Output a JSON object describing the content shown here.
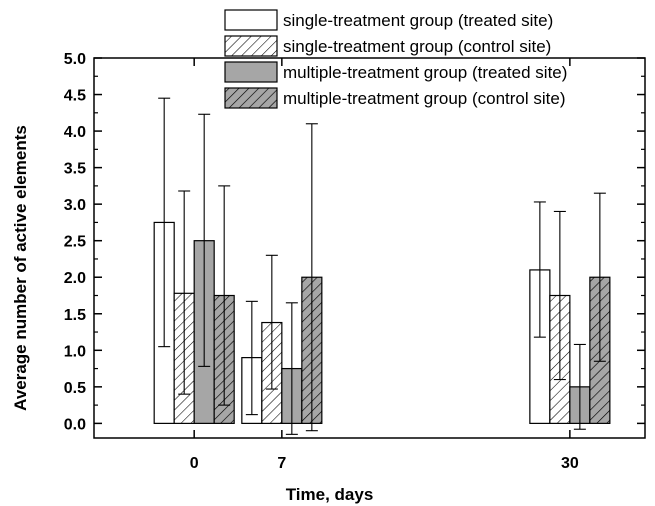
{
  "chart_data": {
    "type": "bar",
    "title": "",
    "xlabel": "Time, days",
    "ylabel": "Average number of active elements",
    "categories": [
      "0",
      "7",
      "30"
    ],
    "x_positions": [
      0,
      7,
      30
    ],
    "xlim": [
      -8,
      36
    ],
    "ylim": [
      -0.2,
      5.0
    ],
    "y_ticks": [
      "0.0",
      "0.5",
      "1.0",
      "1.5",
      "2.0",
      "2.5",
      "3.0",
      "3.5",
      "4.0",
      "4.5",
      "5.0"
    ],
    "grid": false,
    "legend_position": "top-right",
    "series": [
      {
        "name": "single-treatment group (treated site)",
        "pattern": "open",
        "fill": "#ffffff",
        "values": [
          2.75,
          0.9,
          2.1
        ],
        "err_low": [
          1.05,
          0.12,
          1.18
        ],
        "err_high": [
          4.45,
          1.67,
          3.03
        ]
      },
      {
        "name": "single-treatment group (control site)",
        "pattern": "hatch",
        "fill": "#ffffff",
        "values": [
          1.78,
          1.38,
          1.75
        ],
        "err_low": [
          0.4,
          0.47,
          0.6
        ],
        "err_high": [
          3.18,
          2.3,
          2.9
        ]
      },
      {
        "name": "multiple-treatment group (treated site)",
        "pattern": "solid",
        "fill": "#a6a6a6",
        "values": [
          2.5,
          0.75,
          0.5
        ],
        "err_low": [
          0.78,
          -0.15,
          -0.08
        ],
        "err_high": [
          4.23,
          1.65,
          1.08
        ]
      },
      {
        "name": "multiple-treatment group (control site)",
        "pattern": "hatch-filled",
        "fill": "#a6a6a6",
        "values": [
          1.75,
          2.0,
          2.0
        ],
        "err_low": [
          0.25,
          -0.1,
          0.85
        ],
        "err_high": [
          3.25,
          4.1,
          3.15
        ]
      }
    ]
  }
}
